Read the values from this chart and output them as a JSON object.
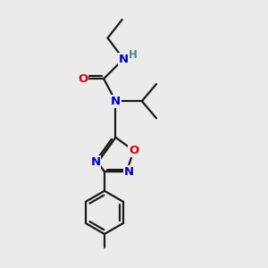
{
  "bg_color": "#ebebeb",
  "atom_colors": {
    "C": "#1a1a1a",
    "N": "#0000cc",
    "O": "#dd0000",
    "H": "#4a8a8a"
  },
  "bond_color": "#1a1a1a",
  "bond_width": 1.6,
  "fig_size": [
    3.0,
    3.0
  ],
  "dpi": 100
}
